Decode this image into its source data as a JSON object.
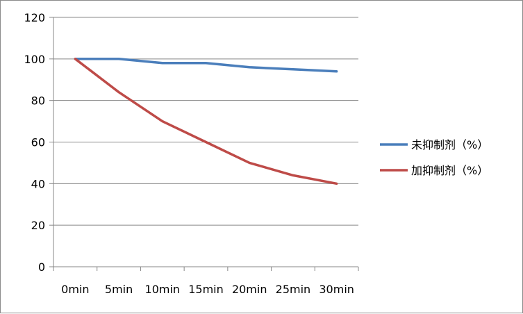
{
  "chart_data": {
    "type": "line",
    "categories": [
      "0min",
      "5min",
      "10min",
      "15min",
      "20min",
      "25min",
      "30min"
    ],
    "series": [
      {
        "name": "未抑制剂（%）",
        "color": "#4a7ebb",
        "values": [
          100,
          100,
          98,
          98,
          96,
          95,
          94
        ]
      },
      {
        "name": "加抑制剂（%）",
        "color": "#be4b48",
        "values": [
          100,
          84,
          70,
          60,
          50,
          44,
          40
        ]
      }
    ],
    "ylim": [
      0,
      120
    ],
    "yticks": [
      0,
      20,
      40,
      60,
      80,
      100,
      120
    ],
    "grid": true,
    "legend_position": "right"
  }
}
